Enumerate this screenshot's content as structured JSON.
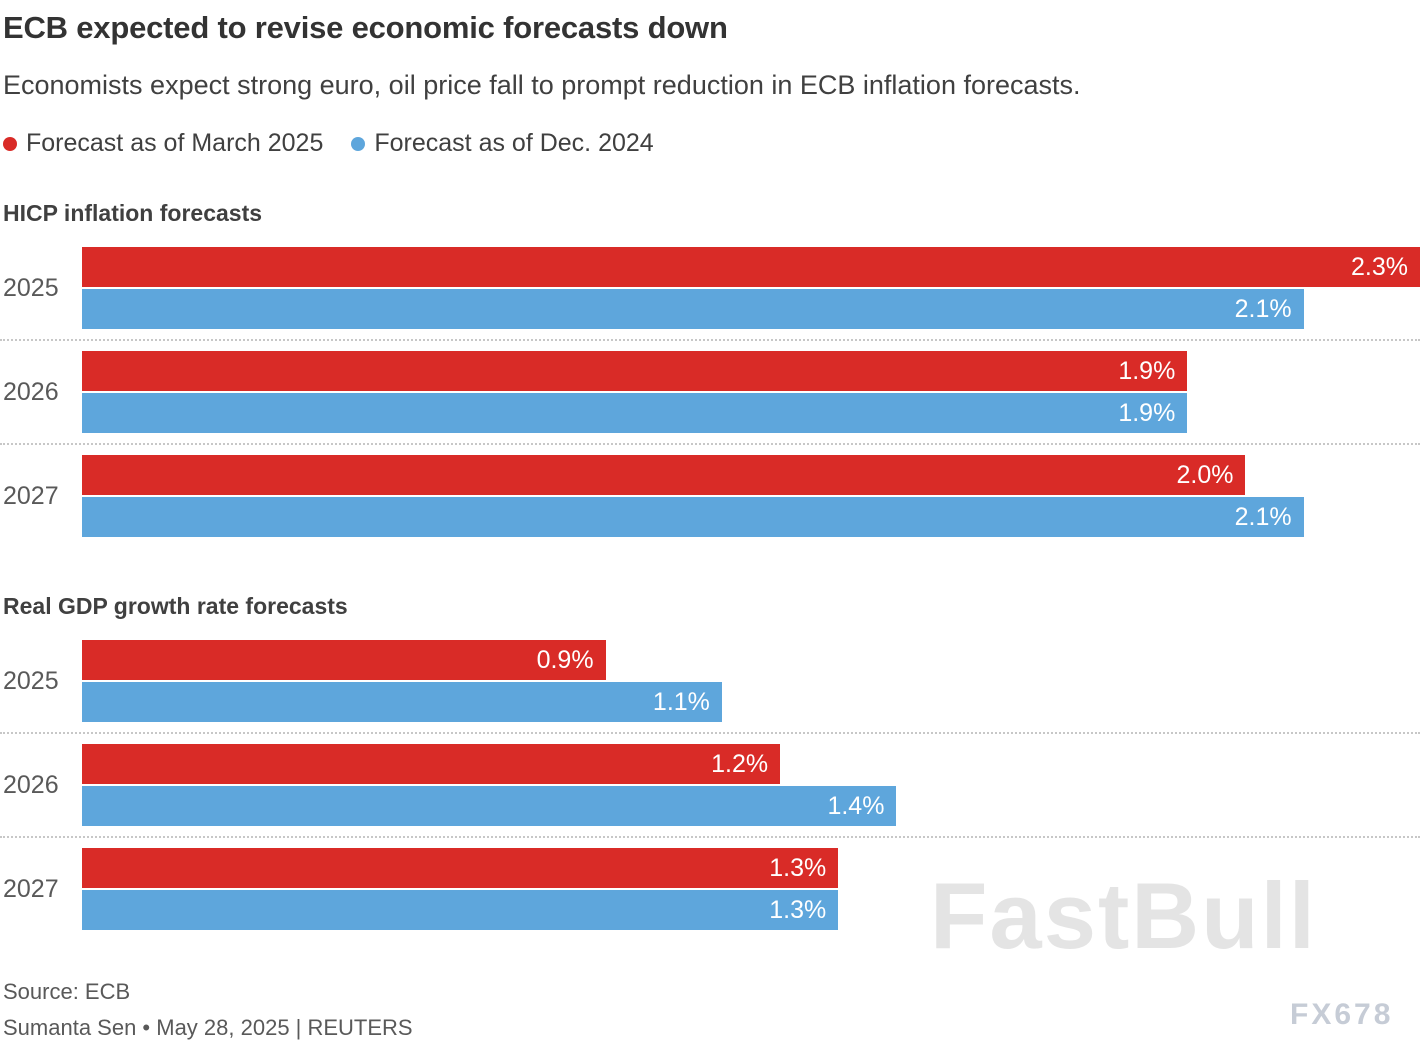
{
  "header": {
    "title": "ECB expected to revise economic forecasts down",
    "subtitle": "Economists expect strong euro, oil price fall to prompt reduction in ECB inflation forecasts."
  },
  "legend": [
    {
      "label": "Forecast as of March 2025",
      "color": "#d92b27"
    },
    {
      "label": "Forecast as of Dec. 2024",
      "color": "#5ea6dc"
    }
  ],
  "chart_data": [
    {
      "type": "bar",
      "orientation": "horizontal",
      "title": "HICP inflation forecasts",
      "categories": [
        "2025",
        "2026",
        "2027"
      ],
      "xlim": [
        0,
        2.3
      ],
      "grid": "dotted-separators-between-categories",
      "legend_position": "top",
      "series": [
        {
          "name": "Forecast as of March 2025",
          "color": "#d92b27",
          "values": [
            2.3,
            1.9,
            2.0
          ],
          "labels": [
            "2.3%",
            "1.9%",
            "2.0%"
          ]
        },
        {
          "name": "Forecast as of Dec. 2024",
          "color": "#5ea6dc",
          "values": [
            2.1,
            1.9,
            2.1
          ],
          "labels": [
            "2.1%",
            "1.9%",
            "2.1%"
          ]
        }
      ]
    },
    {
      "type": "bar",
      "orientation": "horizontal",
      "title": "Real GDP growth rate forecasts",
      "categories": [
        "2025",
        "2026",
        "2027"
      ],
      "xlim": [
        0,
        2.3
      ],
      "grid": "dotted-separators-between-categories",
      "legend_position": "top",
      "series": [
        {
          "name": "Forecast as of March 2025",
          "color": "#d92b27",
          "values": [
            0.9,
            1.2,
            1.3
          ],
          "labels": [
            "0.9%",
            "1.2%",
            "1.3%"
          ]
        },
        {
          "name": "Forecast as of Dec. 2024",
          "color": "#5ea6dc",
          "values": [
            1.1,
            1.4,
            1.3
          ],
          "labels": [
            "1.1%",
            "1.4%",
            "1.3%"
          ]
        }
      ]
    }
  ],
  "footer": {
    "source": "Source: ECB",
    "byline": "Sumanta Sen • May 28, 2025 | REUTERS"
  },
  "watermarks": {
    "primary": "FastBull",
    "secondary": "FX678"
  }
}
